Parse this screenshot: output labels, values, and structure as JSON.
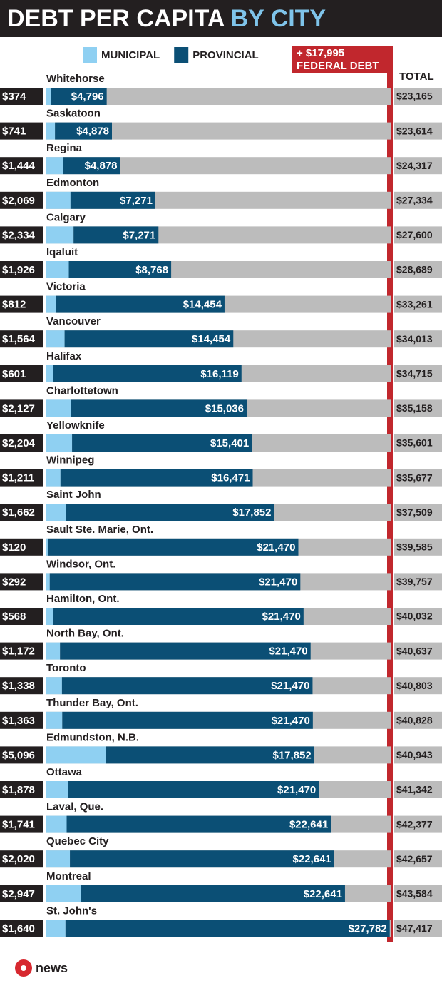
{
  "chart_data": {
    "type": "bar",
    "orientation": "horizontal",
    "stacked": true,
    "title": "DEBT PER CAPITA",
    "title_highlight": "BY CITY",
    "categories": [
      "Whitehorse",
      "Saskatoon",
      "Regina",
      "Edmonton",
      "Calgary",
      "Iqaluit",
      "Victoria",
      "Vancouver",
      "Halifax",
      "Charlottetown",
      "Yellowknife",
      "Winnipeg",
      "Saint John",
      "Sault Ste. Marie, Ont.",
      "Windsor, Ont.",
      "Hamilton, Ont.",
      "North Bay, Ont.",
      "Toronto",
      "Thunder Bay, Ont.",
      "Edmundston, N.B.",
      "Ottawa",
      "Laval, Que.",
      "Quebec City",
      "Montreal",
      "St. John's"
    ],
    "series": [
      {
        "name": "MUNICIPAL",
        "color": "#8fd0f2",
        "values": [
          374,
          741,
          1444,
          2069,
          2334,
          1926,
          812,
          1564,
          601,
          2127,
          2204,
          1211,
          1662,
          120,
          292,
          568,
          1172,
          1338,
          1363,
          5096,
          1878,
          1741,
          2020,
          2947,
          1640
        ],
        "value_labels": [
          "$374",
          "$741",
          "$1,444",
          "$2,069",
          "$2,334",
          "$1,926",
          "$812",
          "$1,564",
          "$601",
          "$2,127",
          "$2,204",
          "$1,211",
          "$1,662",
          "$120",
          "$292",
          "$568",
          "$1,172",
          "$1,338",
          "$1,363",
          "$5,096",
          "$1,878",
          "$1,741",
          "$2,020",
          "$2,947",
          "$1,640"
        ]
      },
      {
        "name": "PROVINCIAL",
        "color": "#0b4f75",
        "values": [
          4796,
          4878,
          4878,
          7271,
          7271,
          8768,
          14454,
          14454,
          16119,
          15036,
          15401,
          16471,
          17852,
          21470,
          21470,
          21470,
          21470,
          21470,
          21470,
          17852,
          21470,
          22641,
          22641,
          22641,
          27782
        ],
        "value_labels": [
          "$4,796",
          "$4,878",
          "$4,878",
          "$7,271",
          "$7,271",
          "$8,768",
          "$14,454",
          "$14,454",
          "$16,119",
          "$15,036",
          "$15,401",
          "$16,471",
          "$17,852",
          "$21,470",
          "$21,470",
          "$21,470",
          "$21,470",
          "$21,470",
          "$21,470",
          "$17,852",
          "$21,470",
          "$22,641",
          "$22,641",
          "$22,641",
          "$27,782"
        ]
      }
    ],
    "federal_debt": {
      "value": 17995,
      "label": "+ $17,995",
      "text": "FEDERAL DEBT",
      "color": "#c1272d"
    },
    "totals": {
      "header": "TOTAL",
      "values": [
        23165,
        23614,
        24317,
        27334,
        27600,
        28689,
        33261,
        34013,
        34715,
        35158,
        35601,
        35677,
        37509,
        39585,
        39757,
        40032,
        40637,
        40803,
        40828,
        40943,
        41342,
        42377,
        42657,
        43584,
        47417
      ],
      "value_labels": [
        "$23,165",
        "$23,614",
        "$24,317",
        "$27,334",
        "$27,600",
        "$28,689",
        "$33,261",
        "$34,013",
        "$34,715",
        "$35,158",
        "$35,601",
        "$35,677",
        "$37,509",
        "$39,585",
        "$39,757",
        "$40,032",
        "$40,637",
        "$40,803",
        "$40,828",
        "$40,943",
        "$41,342",
        "$42,377",
        "$42,657",
        "$43,584",
        "$47,417"
      ]
    },
    "xlim": [
      0,
      29500
    ],
    "logo_text": "news"
  }
}
